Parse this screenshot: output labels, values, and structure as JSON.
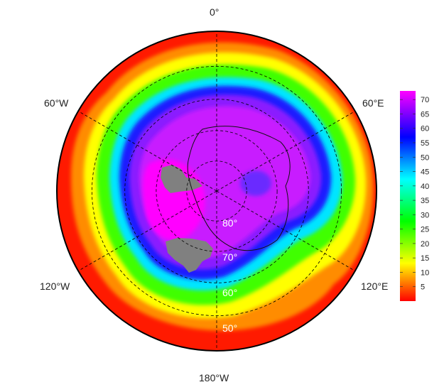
{
  "map": {
    "projection": "south-polar-stereographic",
    "longitude_labels": [
      {
        "lon": 0,
        "text": "0°"
      },
      {
        "lon": 60,
        "text": "60°E"
      },
      {
        "lon": 120,
        "text": "120°E"
      },
      {
        "lon": 180,
        "text": "180°W"
      },
      {
        "lon": -120,
        "text": "120°W"
      },
      {
        "lon": -60,
        "text": "60°W"
      }
    ],
    "latitude_labels": [
      {
        "lat": -80,
        "text": "80°"
      },
      {
        "lat": -70,
        "text": "70°"
      },
      {
        "lat": -60,
        "text": "60°"
      },
      {
        "lat": -50,
        "text": "50°"
      }
    ],
    "outer_latitude": -40,
    "grid_latitudes": [
      -80,
      -70,
      -60,
      -50
    ],
    "colormap": [
      "#ff0000",
      "#ffff00",
      "#00ff00",
      "#00ffff",
      "#0000ff",
      "#ff00ff"
    ],
    "land_color": "#808080"
  },
  "colorbar": {
    "min": 0,
    "max": 73,
    "ticks": [
      "5",
      "10",
      "15",
      "20",
      "25",
      "30",
      "35",
      "40",
      "45",
      "50",
      "55",
      "60",
      "65",
      "70"
    ],
    "tick_values": [
      5,
      10,
      15,
      20,
      25,
      30,
      35,
      40,
      45,
      50,
      55,
      60,
      65,
      70
    ]
  }
}
